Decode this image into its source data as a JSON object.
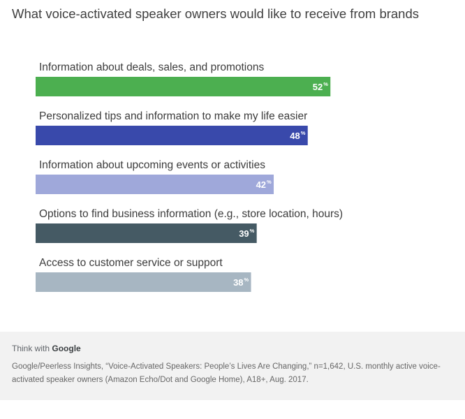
{
  "header": {
    "title": "What voice-activated speaker owners would like to receive from brands"
  },
  "chart_data": {
    "type": "bar",
    "orientation": "horizontal",
    "title": "What voice-activated speaker owners would like to receive from brands",
    "xlabel": "",
    "ylabel": "",
    "xlim": [
      0,
      100
    ],
    "unit": "%",
    "categories": [
      "Information about deals, sales, and promotions",
      "Personalized tips and information to make my life easier",
      "Information about upcoming events or activities",
      "Options to find business information (e.g., store location, hours)",
      "Access to customer service or support"
    ],
    "values": [
      52,
      48,
      42,
      39,
      38
    ],
    "colors": [
      "#4caf50",
      "#3949ab",
      "#9fa8da",
      "#455a64",
      "#a7b6c2"
    ]
  },
  "footer": {
    "brand_prefix": "Think with",
    "brand_name": "Google",
    "source": "Google/Peerless Insights, “Voice-Activated Speakers: People’s Lives Are Changing,” n=1,642, U.S. monthly active voice-activated speaker owners (Amazon Echo/Dot and Google Home), A18+, Aug. 2017."
  }
}
